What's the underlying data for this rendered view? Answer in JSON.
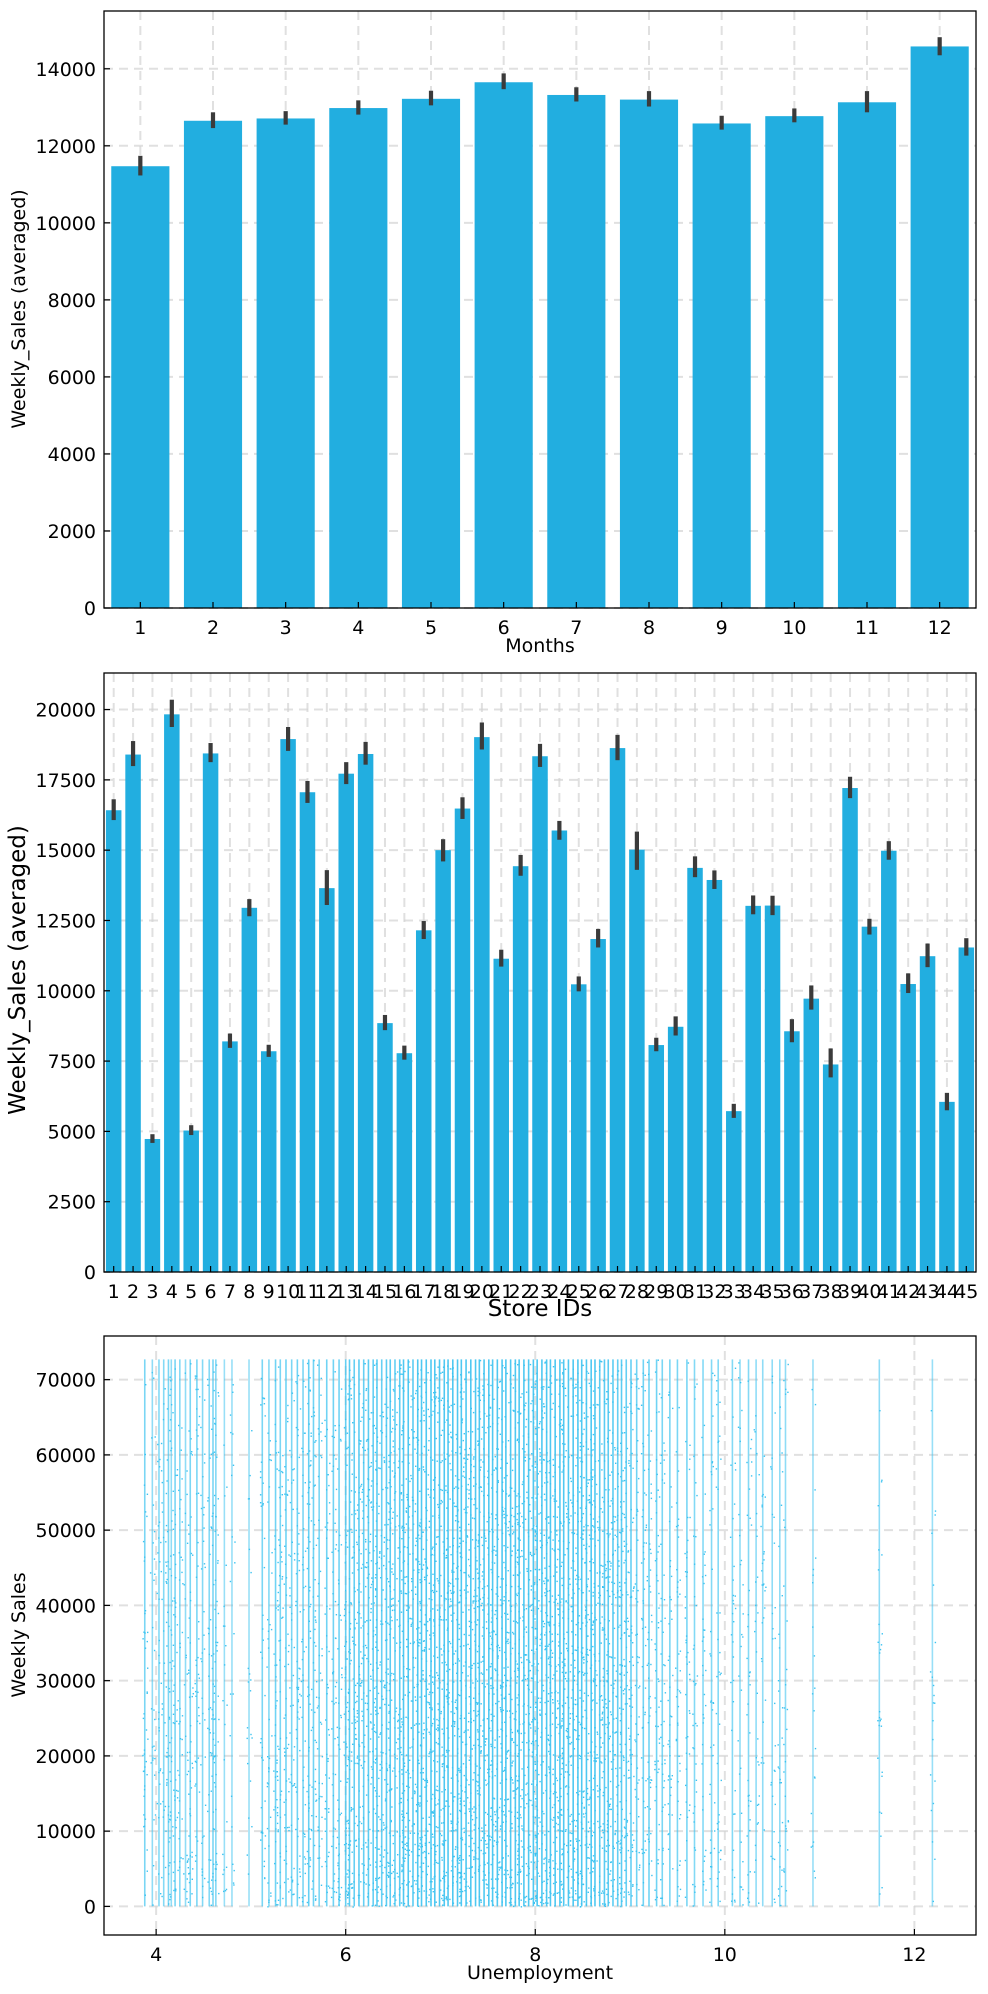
{
  "charts": {
    "bar_color": "#22aee0",
    "err_color": "#3b3b3b",
    "scatter_color": "#3cc3f0"
  },
  "chart_data": [
    {
      "type": "bar",
      "xlabel": "Months",
      "ylabel": "Weekly_Sales (averaged)",
      "ylim": [
        0,
        15500
      ],
      "yticks": [
        0,
        2000,
        4000,
        6000,
        8000,
        10000,
        12000,
        14000
      ],
      "grid": true,
      "categories": [
        "1",
        "2",
        "3",
        "4",
        "5",
        "6",
        "7",
        "8",
        "9",
        "10",
        "11",
        "12"
      ],
      "values": [
        11470,
        12650,
        12710,
        12980,
        13220,
        13650,
        13320,
        13200,
        12580,
        12770,
        13130,
        14580
      ],
      "error_low": [
        11230,
        12460,
        12550,
        12810,
        13050,
        13470,
        13150,
        13020,
        12420,
        12610,
        12870,
        14350
      ],
      "error_high": [
        11740,
        12870,
        12900,
        13180,
        13430,
        13880,
        13520,
        13420,
        12780,
        12970,
        13420,
        14820
      ]
    },
    {
      "type": "bar",
      "xlabel": "Store IDs",
      "ylabel": "Weekly_Sales (averaged)",
      "ylim": [
        0,
        21300
      ],
      "yticks": [
        0,
        2500,
        5000,
        7500,
        10000,
        12500,
        15000,
        17500,
        20000
      ],
      "grid": true,
      "categories": [
        "1",
        "2",
        "3",
        "4",
        "5",
        "6",
        "7",
        "8",
        "9",
        "10",
        "11",
        "12",
        "13",
        "14",
        "15",
        "16",
        "17",
        "18",
        "19",
        "20",
        "21",
        "22",
        "23",
        "24",
        "25",
        "26",
        "27",
        "28",
        "29",
        "30",
        "31",
        "32",
        "33",
        "34",
        "35",
        "36",
        "37",
        "38",
        "39",
        "40",
        "41",
        "42",
        "43",
        "44",
        "45"
      ],
      "values": [
        16420,
        18400,
        4730,
        19830,
        5030,
        18440,
        8200,
        12950,
        7850,
        18950,
        17060,
        13650,
        17720,
        18420,
        8850,
        7780,
        12150,
        15000,
        16480,
        19020,
        11140,
        14430,
        18340,
        15700,
        10230,
        11840,
        18630,
        15020,
        8070,
        8720,
        14370,
        13940,
        5720,
        13020,
        13030,
        8560,
        9720,
        7380,
        17210,
        12280,
        14980,
        10240,
        11230,
        6050,
        11540
      ],
      "error_low": [
        16070,
        17990,
        4590,
        19380,
        4870,
        18130,
        7970,
        12650,
        7650,
        18530,
        16680,
        13050,
        17350,
        18040,
        8600,
        7550,
        11840,
        14600,
        16110,
        18580,
        10860,
        14090,
        17960,
        15370,
        9980,
        11540,
        18200,
        14300,
        7850,
        8410,
        14040,
        13620,
        5480,
        12720,
        12690,
        8170,
        9330,
        6920,
        16850,
        12000,
        14660,
        9920,
        10840,
        5750,
        11250
      ],
      "error_high": [
        16810,
        18880,
        4900,
        20350,
        5220,
        18810,
        8480,
        13260,
        8080,
        19380,
        17460,
        14290,
        18130,
        18850,
        9140,
        8050,
        12480,
        15390,
        16880,
        19540,
        11460,
        14830,
        18780,
        16040,
        10510,
        12200,
        19100,
        15660,
        8330,
        9090,
        14780,
        14280,
        5980,
        13390,
        13380,
        8990,
        10190,
        7950,
        17610,
        12560,
        15320,
        10620,
        11680,
        6370,
        11870
      ]
    },
    {
      "type": "scatter",
      "xlabel": "Unemployment",
      "ylabel": "Weekly Sales",
      "xlim": [
        3.45,
        12.65
      ],
      "ylim": [
        -3800,
        75800
      ],
      "xticks": [
        4,
        6,
        8,
        10,
        12
      ],
      "yticks": [
        0,
        10000,
        20000,
        30000,
        40000,
        50000,
        60000,
        70000
      ],
      "grid": true,
      "y_range_of_points": [
        0,
        72700
      ],
      "x_values": [
        3.88,
        3.96,
        4.03,
        4.08,
        4.13,
        4.16,
        4.2,
        4.25,
        4.31,
        4.36,
        4.43,
        4.49,
        4.56,
        4.6,
        4.63,
        4.72,
        4.8,
        4.98,
        5.12,
        5.19,
        5.26,
        5.31,
        5.37,
        5.43,
        5.49,
        5.55,
        5.61,
        5.66,
        5.72,
        5.8,
        5.87,
        5.93,
        6.0,
        6.04,
        6.09,
        6.14,
        6.19,
        6.24,
        6.29,
        6.33,
        6.38,
        6.43,
        6.47,
        6.52,
        6.57,
        6.61,
        6.66,
        6.71,
        6.76,
        6.8,
        6.85,
        6.9,
        6.94,
        6.99,
        7.04,
        7.08,
        7.13,
        7.18,
        7.22,
        7.27,
        7.32,
        7.37,
        7.41,
        7.46,
        7.51,
        7.55,
        7.6,
        7.65,
        7.69,
        7.74,
        7.79,
        7.83,
        7.88,
        7.93,
        7.98,
        8.02,
        8.07,
        8.12,
        8.16,
        8.21,
        8.26,
        8.3,
        8.35,
        8.4,
        8.45,
        8.49,
        8.54,
        8.59,
        8.63,
        8.68,
        8.73,
        8.77,
        8.82,
        8.87,
        8.91,
        8.96,
        9.01,
        9.07,
        9.14,
        9.2,
        9.28,
        9.34,
        9.42,
        9.5,
        9.6,
        9.68,
        9.77,
        9.86,
        9.93,
        10.08,
        10.16,
        10.25,
        10.33,
        10.4,
        10.5,
        10.58,
        10.64,
        10.93,
        11.63,
        12.19
      ],
      "weights": [
        0.6,
        0.4,
        0.5,
        0.5,
        0.6,
        0.4,
        0.6,
        0.5,
        0.4,
        0.6,
        0.6,
        0.5,
        0.5,
        0.6,
        0.5,
        0.3,
        0.3,
        0.3,
        0.6,
        0.5,
        0.7,
        0.6,
        0.7,
        0.6,
        0.7,
        0.6,
        0.8,
        0.7,
        0.6,
        0.7,
        0.7,
        0.7,
        0.8,
        0.9,
        0.8,
        0.9,
        0.8,
        0.9,
        0.8,
        0.9,
        0.8,
        0.9,
        0.9,
        0.8,
        0.9,
        1.0,
        1.0,
        0.9,
        1.0,
        1.0,
        1.0,
        1.0,
        1.0,
        1.0,
        1.0,
        1.0,
        1.0,
        1.0,
        1.0,
        1.0,
        1.0,
        1.0,
        1.0,
        1.0,
        1.0,
        1.0,
        1.0,
        1.0,
        1.0,
        1.0,
        1.0,
        1.0,
        1.0,
        1.0,
        1.0,
        1.0,
        1.0,
        1.0,
        1.0,
        1.0,
        1.0,
        1.0,
        1.0,
        1.0,
        1.0,
        1.0,
        1.0,
        1.0,
        1.0,
        0.9,
        0.9,
        0.9,
        0.9,
        0.8,
        0.9,
        0.8,
        0.8,
        0.7,
        0.7,
        0.7,
        0.7,
        0.6,
        0.6,
        0.6,
        0.6,
        0.5,
        0.5,
        0.5,
        0.5,
        0.5,
        0.4,
        0.5,
        0.4,
        0.4,
        0.4,
        0.4,
        0.4,
        0.3,
        0.4,
        0.3
      ]
    }
  ]
}
